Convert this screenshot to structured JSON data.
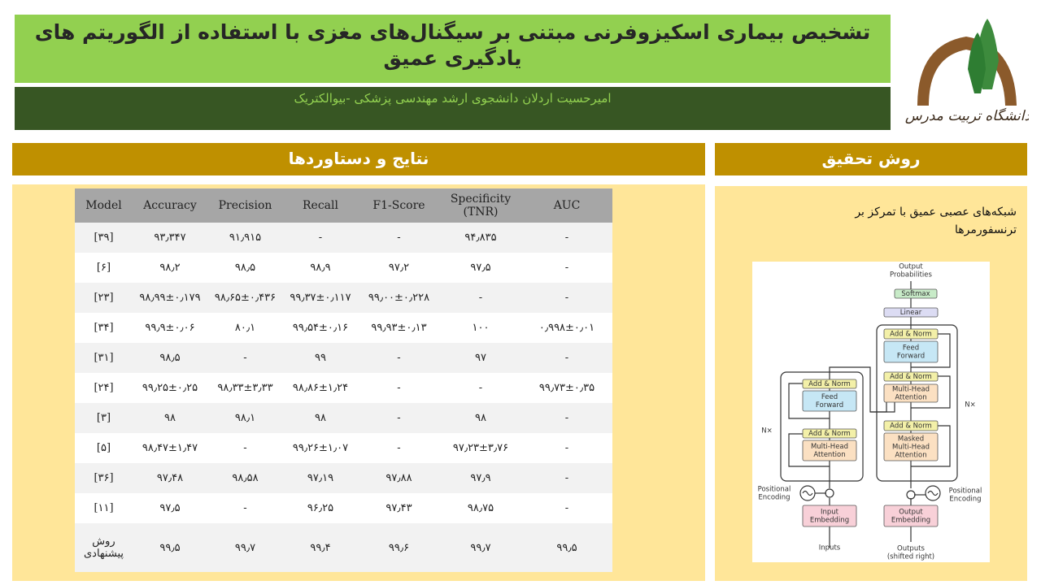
{
  "header": {
    "title": "تشخیص بیماری اسکیزوفرنی مبتنی بر سیگنال‌های مغزی با استفاده از الگوریتم های یادگیری عمیق",
    "subtitle": "امیرحسیت اردلان دانشجوی ارشد مهندسی پزشکی -بیوالکتریک",
    "logo_text": "دانشگاه تربیت مدرس"
  },
  "results": {
    "heading": "نتایج و دستاوردها"
  },
  "table": {
    "columns": [
      "Model",
      "Accuracy",
      "Precision",
      "Recall",
      "F1-Score",
      "Specificity (TNR)",
      "AUC"
    ],
    "rows": [
      [
        "[۳۹]",
        "۹۳٫۳۴۷",
        "۹۱٫۹۱۵",
        "-",
        "-",
        "۹۴٫۸۳۵",
        "-"
      ],
      [
        "[۶]",
        "۹۸٫۲",
        "۹۸٫۵",
        "۹۸٫۹",
        "۹۷٫۲",
        "۹۷٫۵",
        "-"
      ],
      [
        "[۲۳]",
        "۹۸٫۹۹±۰٫۱۷۹",
        "۹۸٫۶۵±۰٫۴۳۶",
        "۹۹٫۳۷±۰٫۱۱۷",
        "۹۹٫۰۰±۰٫۲۲۸",
        "-",
        "-"
      ],
      [
        "[۳۴]",
        "۹۹٫۹±۰٫۰۶",
        "۸۰٫۱",
        "۹۹٫۵۴±۰٫۱۶",
        "۹۹٫۹۳±۰٫۱۳",
        "۱۰۰",
        "۰٫۹۹۸±۰٫۰۱"
      ],
      [
        "[۳۱]",
        "۹۸٫۵",
        "-",
        "۹۹",
        "-",
        "۹۷",
        "-"
      ],
      [
        "[۲۴]",
        "۹۹٫۲۵±۰٫۲۵",
        "۹۸٫۳۳±۳٫۳۳",
        "۹۸٫۸۶±۱٫۲۴",
        "-",
        "-",
        "۹۹٫۷۳±۰٫۳۵"
      ],
      [
        "[۳]",
        "۹۸",
        "۹۸٫۱",
        "۹۸",
        "-",
        "۹۸",
        "-"
      ],
      [
        "[۵]",
        "۹۸٫۴۷±۱٫۴۷",
        "-",
        "۹۹٫۲۶±۱٫۰۷",
        "-",
        "۹۷٫۲۳±۳٫۷۶",
        "-"
      ],
      [
        "[۳۶]",
        "۹۷٫۴۸",
        "۹۸٫۵۸",
        "۹۷٫۱۹",
        "۹۷٫۸۸",
        "۹۷٫۹",
        "-"
      ],
      [
        "[۱۱]",
        "۹۷٫۵",
        "-",
        "۹۶٫۲۵",
        "۹۷٫۴۳",
        "۹۸٫۷۵",
        "-"
      ],
      [
        "روش پیشنهادی",
        "۹۹٫۵",
        "۹۹٫۷",
        "۹۹٫۴",
        "۹۹٫۶",
        "۹۹٫۷",
        "۹۹٫۵"
      ]
    ]
  },
  "method": {
    "heading": "روش تحقیق",
    "text": "شبکه‌های عصبی عمیق با تمرکز بر ترنسفورمرها"
  },
  "diagram": {
    "nodes": [
      {
        "lines": [
          "Output",
          "Probabilities"
        ]
      },
      {
        "lines": [
          "Softmax"
        ]
      },
      {
        "lines": [
          "Linear"
        ]
      },
      {
        "lines": [
          "Add & Norm"
        ]
      },
      {
        "lines": [
          "Feed",
          "Forward"
        ]
      },
      {
        "lines": [
          "Add & Norm"
        ]
      },
      {
        "lines": [
          "Multi-Head",
          "Attention"
        ]
      },
      {
        "lines": [
          "Add & Norm"
        ]
      },
      {
        "lines": [
          "Masked",
          "Multi-Head",
          "Attention"
        ]
      },
      {
        "lines": [
          "Add & Norm"
        ]
      },
      {
        "lines": [
          "Feed",
          "Forward"
        ]
      },
      {
        "lines": [
          "Add & Norm"
        ]
      },
      {
        "lines": [
          "Multi-Head",
          "Attention"
        ]
      },
      {
        "lines": [
          "Input",
          "Embedding"
        ]
      },
      {
        "lines": [
          "Output",
          "Embedding"
        ]
      },
      {
        "lines": [
          "Positional",
          "Encoding"
        ]
      },
      {
        "lines": [
          "Positional",
          "Encoding"
        ]
      },
      {
        "lines": [
          "Inputs"
        ]
      },
      {
        "lines": [
          "Outputs",
          "(shifted right)"
        ]
      },
      {
        "lines": [
          "N×"
        ]
      },
      {
        "lines": [
          "N×"
        ]
      }
    ]
  }
}
